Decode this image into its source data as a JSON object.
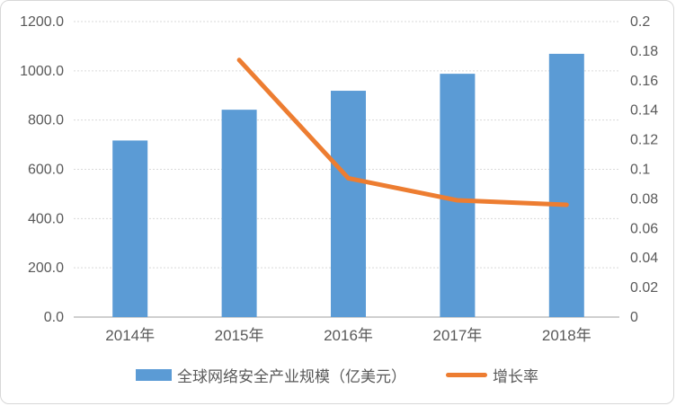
{
  "chart_data": {
    "type": "bar",
    "subtype": "bar-line-combo",
    "title": "",
    "categories": [
      "2014年",
      "2015年",
      "2016年",
      "2017年",
      "2018年"
    ],
    "series": [
      {
        "name": "全球网络安全产业规模（亿美元）",
        "type": "bar",
        "axis": "left",
        "values": [
          717,
          842,
          919,
          988,
          1069
        ]
      },
      {
        "name": "增长率",
        "type": "line",
        "axis": "right",
        "values": [
          null,
          0.174,
          0.094,
          0.079,
          0.076
        ]
      }
    ],
    "left_axis": {
      "min": 0,
      "max": 1200,
      "step": 200,
      "tick_labels": [
        "0.0",
        "200.0",
        "400.0",
        "600.0",
        "800.0",
        "1000.0",
        "1200.0"
      ]
    },
    "right_axis": {
      "min": 0,
      "max": 0.2,
      "step": 0.02,
      "tick_labels": [
        "0",
        "0.02",
        "0.04",
        "0.06",
        "0.08",
        "0.1",
        "0.12",
        "0.14",
        "0.16",
        "0.18",
        "0.2"
      ]
    },
    "grid": "horizontal-dashed",
    "legend_position": "bottom",
    "colors": {
      "bar": "#5b9bd5",
      "line": "#ed7d31",
      "tick_text": "#595959",
      "gridline": "#d9d9d9",
      "axis_line": "#bfbfbf"
    }
  }
}
